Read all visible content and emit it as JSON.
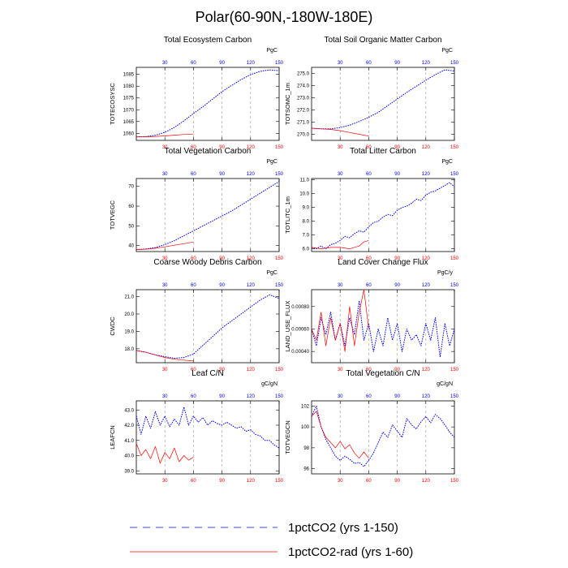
{
  "figure": {
    "title": "Polar(60-90N,-180W-180E)",
    "colors": {
      "series1": "#0000ff",
      "series2": "#ff0000",
      "grid": "#9a9a9a",
      "axis": "#000000"
    }
  },
  "legend": [
    {
      "label": "1pctCO2 (yrs 1-150)",
      "style": "dashed",
      "color": "#0000ff"
    },
    {
      "label": "1pctCO2-rad (yrs 1-60)",
      "style": "solid",
      "color": "#ff0000"
    }
  ],
  "chart_data": [
    {
      "type": "line",
      "title": "Total Ecosystem Carbon",
      "ylabel": "TOTECOSYSC",
      "units": "PgC",
      "xlim": [
        0,
        150
      ],
      "x_ticks": [
        30,
        60,
        90,
        120,
        150
      ],
      "top_ticks": [
        30,
        60,
        90,
        120,
        150
      ],
      "ylim": [
        1057,
        1088
      ],
      "y_ticks": [
        1060,
        1065,
        1070,
        1075,
        1080,
        1085
      ],
      "y_tick_labels": [
        "1060",
        "1065",
        "1070",
        "1075",
        "1080",
        "1085"
      ],
      "series": [
        {
          "x": [
            0,
            10,
            20,
            30,
            40,
            50,
            60,
            70,
            80,
            90,
            100,
            110,
            120,
            130,
            140,
            150
          ],
          "y": [
            1058.5,
            1058.6,
            1059.2,
            1060.4,
            1062.5,
            1065.3,
            1068.4,
            1071.3,
            1074.5,
            1077.7,
            1080.3,
            1082.8,
            1084.9,
            1086.3,
            1086.9,
            1086.6
          ]
        },
        {
          "x": [
            0,
            10,
            20,
            30,
            40,
            50,
            60
          ],
          "y": [
            1058.5,
            1058.5,
            1058.7,
            1058.9,
            1059.2,
            1059.5,
            1059.7
          ]
        }
      ]
    },
    {
      "type": "line",
      "title": "Total Soil Organic Matter Carbon",
      "ylabel": "TOTSOMC_1m",
      "units": "PgC",
      "xlim": [
        0,
        150
      ],
      "x_ticks": [
        30,
        60,
        90,
        120,
        150
      ],
      "top_ticks": [
        30,
        60,
        90,
        120,
        150
      ],
      "ylim": [
        269.5,
        275.5
      ],
      "y_ticks": [
        270,
        271,
        272,
        273,
        274,
        275
      ],
      "y_tick_labels": [
        "270.0",
        "271.0",
        "272.0",
        "273.0",
        "274.0",
        "275.0"
      ],
      "series": [
        {
          "x": [
            0,
            10,
            20,
            30,
            40,
            50,
            60,
            70,
            80,
            90,
            100,
            110,
            120,
            130,
            140,
            150
          ],
          "y": [
            270.5,
            270.45,
            270.45,
            270.55,
            270.75,
            271.05,
            271.4,
            271.8,
            272.35,
            272.9,
            273.45,
            273.95,
            274.45,
            274.9,
            275.3,
            275.2
          ]
        },
        {
          "x": [
            0,
            10,
            20,
            30,
            40,
            50,
            60
          ],
          "y": [
            270.5,
            270.45,
            270.4,
            270.3,
            270.15,
            270.0,
            269.85
          ]
        }
      ]
    },
    {
      "type": "line",
      "title": "Total Vegetation Carbon",
      "ylabel": "TOTVEGC",
      "units": "PgC",
      "xlim": [
        0,
        150
      ],
      "x_ticks": [
        30,
        60,
        90,
        120,
        150
      ],
      "top_ticks": [
        30,
        60,
        90,
        120,
        150
      ],
      "ylim": [
        37,
        74
      ],
      "y_ticks": [
        40,
        50,
        60,
        70
      ],
      "y_tick_labels": [
        "40",
        "50",
        "60",
        "70"
      ],
      "series": [
        {
          "x": [
            0,
            10,
            20,
            30,
            40,
            50,
            60,
            70,
            80,
            90,
            100,
            110,
            120,
            130,
            140,
            150
          ],
          "y": [
            38.0,
            38.3,
            39.0,
            40.5,
            42.5,
            45.0,
            47.5,
            50.0,
            52.5,
            55.0,
            57.5,
            60.5,
            63.5,
            66.5,
            69.5,
            72.5
          ]
        },
        {
          "x": [
            0,
            10,
            20,
            30,
            40,
            50,
            60
          ],
          "y": [
            38.0,
            38.2,
            38.7,
            39.4,
            40.2,
            41.0,
            41.8
          ]
        }
      ]
    },
    {
      "type": "line",
      "title": "Total Litter Carbon",
      "ylabel": "TOTLITC_1m",
      "units": "PgC",
      "xlim": [
        0,
        150
      ],
      "x_ticks": [
        30,
        60,
        90,
        120,
        150
      ],
      "top_ticks": [
        30,
        60,
        90,
        120,
        150
      ],
      "ylim": [
        5.8,
        11.1
      ],
      "y_ticks": [
        6,
        7,
        8,
        9,
        10,
        11
      ],
      "y_tick_labels": [
        "6.0",
        "7.0",
        "8.0",
        "9.0",
        "10.0",
        "11.0"
      ],
      "series": [
        {
          "x": [
            0,
            5,
            10,
            15,
            20,
            25,
            30,
            35,
            40,
            45,
            50,
            55,
            60,
            65,
            70,
            75,
            80,
            85,
            90,
            95,
            100,
            105,
            110,
            115,
            120,
            125,
            130,
            135,
            140,
            145,
            150
          ],
          "y": [
            6.1,
            6.0,
            6.2,
            6.0,
            6.3,
            6.4,
            6.6,
            6.9,
            6.8,
            7.1,
            7.3,
            7.2,
            7.6,
            7.9,
            8.0,
            8.3,
            8.5,
            8.4,
            8.8,
            9.0,
            9.1,
            9.3,
            9.6,
            9.5,
            9.9,
            10.1,
            10.2,
            10.4,
            10.6,
            10.8,
            10.5
          ]
        },
        {
          "x": [
            0,
            10,
            20,
            30,
            40,
            50,
            55,
            60
          ],
          "y": [
            6.1,
            6.0,
            6.1,
            6.1,
            6.0,
            6.2,
            6.5,
            6.6
          ]
        }
      ]
    },
    {
      "type": "line",
      "title": "Coarse Woody Debris Carbon",
      "ylabel": "CWDC",
      "units": "PgC",
      "xlim": [
        0,
        150
      ],
      "x_ticks": [
        30,
        60,
        90,
        120,
        150
      ],
      "top_ticks": [
        30,
        60,
        90,
        120,
        150
      ],
      "ylim": [
        17.2,
        21.4
      ],
      "y_ticks": [
        18,
        19,
        20,
        21
      ],
      "y_tick_labels": [
        "18.0",
        "19.0",
        "20.0",
        "21.0"
      ],
      "series": [
        {
          "x": [
            0,
            10,
            20,
            30,
            40,
            50,
            60,
            70,
            80,
            90,
            100,
            110,
            120,
            130,
            140,
            150
          ],
          "y": [
            17.9,
            17.8,
            17.65,
            17.55,
            17.45,
            17.5,
            17.7,
            18.2,
            18.7,
            19.2,
            19.6,
            20.0,
            20.4,
            20.8,
            21.1,
            20.9
          ]
        },
        {
          "x": [
            0,
            10,
            20,
            30,
            40,
            50,
            60
          ],
          "y": [
            17.9,
            17.8,
            17.65,
            17.5,
            17.4,
            17.35,
            17.3
          ]
        }
      ]
    },
    {
      "type": "line",
      "title": "Land Cover Change Flux",
      "ylabel": "LAND_USE_FLUX",
      "units": "PgC/y",
      "xlim": [
        0,
        150
      ],
      "x_ticks": [
        30,
        60,
        90,
        120,
        150
      ],
      "top_ticks": [
        30,
        60,
        90,
        120,
        150
      ],
      "ylim": [
        0.0003,
        0.00095
      ],
      "y_ticks": [
        0.0004,
        0.0006,
        0.0008
      ],
      "y_tick_labels": [
        "0.00040",
        "0.00060",
        "0.00080"
      ],
      "series": [
        {
          "x": [
            0,
            5,
            10,
            15,
            20,
            25,
            30,
            35,
            40,
            45,
            50,
            55,
            60,
            65,
            70,
            75,
            80,
            85,
            90,
            95,
            100,
            105,
            110,
            115,
            120,
            125,
            130,
            135,
            140,
            145,
            150
          ],
          "y": [
            0.0006,
            0.00045,
            0.0007,
            0.00055,
            0.00075,
            0.0005,
            0.00065,
            0.00045,
            0.0007,
            0.00055,
            0.00085,
            0.0005,
            0.00065,
            0.0004,
            0.0006,
            0.00045,
            0.0007,
            0.0005,
            0.00065,
            0.0004,
            0.0006,
            0.0005,
            0.00055,
            0.00045,
            0.00065,
            0.0005,
            0.0007,
            0.00035,
            0.00065,
            0.00045,
            0.0006
          ]
        },
        {
          "x": [
            0,
            5,
            10,
            15,
            20,
            25,
            30,
            35,
            40,
            45,
            50,
            55,
            60
          ],
          "y": [
            0.0006,
            0.0005,
            0.00075,
            0.00045,
            0.0007,
            0.0005,
            0.00065,
            0.0004,
            0.0008,
            0.00045,
            0.00075,
            0.00095,
            0.0006
          ]
        }
      ]
    },
    {
      "type": "line",
      "title": "Leaf C/N",
      "ylabel": "LEAFCN",
      "units": "gC/gN",
      "xlim": [
        0,
        150
      ],
      "x_ticks": [
        30,
        60,
        90,
        120,
        150
      ],
      "top_ticks": [
        30,
        60,
        90,
        120,
        150
      ],
      "ylim": [
        38.8,
        43.6
      ],
      "y_ticks": [
        39,
        40,
        41,
        42,
        43
      ],
      "y_tick_labels": [
        "39.0",
        "40.0",
        "41.0",
        "42.0",
        "43.0"
      ],
      "series": [
        {
          "x": [
            0,
            5,
            10,
            15,
            20,
            25,
            30,
            35,
            40,
            45,
            50,
            55,
            60,
            65,
            70,
            75,
            80,
            85,
            90,
            95,
            100,
            105,
            110,
            115,
            120,
            125,
            130,
            135,
            140,
            145,
            150
          ],
          "y": [
            42.6,
            41.4,
            42.6,
            41.8,
            42.9,
            42.0,
            42.6,
            41.9,
            42.4,
            42.0,
            43.2,
            42.0,
            42.6,
            42.2,
            42.5,
            42.0,
            42.3,
            42.1,
            42.0,
            42.2,
            42.0,
            41.8,
            41.9,
            41.6,
            41.7,
            41.4,
            41.3,
            41.0,
            41.0,
            40.7,
            40.5
          ]
        },
        {
          "x": [
            0,
            5,
            10,
            15,
            20,
            25,
            30,
            35,
            40,
            45,
            50,
            55,
            60
          ],
          "y": [
            40.8,
            40.0,
            40.4,
            39.8,
            40.6,
            39.5,
            40.2,
            39.8,
            40.5,
            39.6,
            40.0,
            39.7,
            39.9
          ]
        }
      ]
    },
    {
      "type": "line",
      "title": "Total Vegetation C/N",
      "ylabel": "TOTVEGCN",
      "units": "gC/gN",
      "xlim": [
        0,
        150
      ],
      "x_ticks": [
        30,
        60,
        90,
        120,
        150
      ],
      "top_ticks": [
        30,
        60,
        90,
        120,
        150
      ],
      "ylim": [
        95.5,
        102.5
      ],
      "y_ticks": [
        96,
        98,
        100,
        102
      ],
      "y_tick_labels": [
        "96",
        "98",
        "100",
        "102"
      ],
      "series": [
        {
          "x": [
            0,
            5,
            10,
            15,
            20,
            25,
            30,
            35,
            40,
            45,
            50,
            55,
            60,
            65,
            70,
            75,
            80,
            85,
            90,
            95,
            100,
            105,
            110,
            115,
            120,
            125,
            130,
            135,
            140,
            145,
            150
          ],
          "y": [
            101.0,
            102.0,
            100.0,
            98.8,
            98.0,
            97.2,
            96.8,
            97.2,
            96.9,
            96.5,
            96.6,
            96.2,
            96.8,
            97.5,
            98.5,
            99.5,
            99.0,
            100.2,
            99.6,
            99.0,
            100.8,
            100.2,
            99.8,
            100.5,
            101.0,
            100.4,
            101.2,
            100.8,
            100.2,
            99.5,
            99.0
          ]
        },
        {
          "x": [
            0,
            5,
            10,
            15,
            20,
            25,
            30,
            35,
            40,
            45,
            50,
            55,
            60
          ],
          "y": [
            101.0,
            101.5,
            100.0,
            99.0,
            98.5,
            98.0,
            98.6,
            97.9,
            98.3,
            97.5,
            97.0,
            97.6,
            97.0
          ]
        }
      ]
    }
  ]
}
